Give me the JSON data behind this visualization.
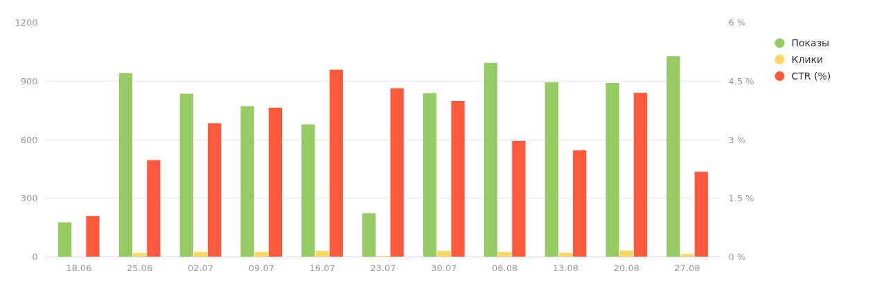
{
  "chart_data": {
    "type": "bar",
    "categories": [
      "18.06",
      "25.06",
      "02.07",
      "09.07",
      "16.07",
      "23.07",
      "30.07",
      "06.08",
      "13.08",
      "20.08",
      "27.08"
    ],
    "series": [
      {
        "name": "Показы",
        "color": "#97cb63",
        "values": [
          177,
          940,
          835,
          772,
          678,
          224,
          838,
          994,
          894,
          890,
          1027
        ]
      },
      {
        "name": "Клики",
        "color": "#ffd75e",
        "values": [
          0,
          20,
          26,
          26,
          30,
          4,
          30,
          26,
          21,
          33,
          15
        ]
      },
      {
        "name": "CTR (%)",
        "color": "#ff5a3c",
        "axis": "y2",
        "values": [
          1.05,
          2.48,
          3.42,
          3.82,
          4.79,
          4.32,
          3.99,
          2.97,
          2.73,
          4.2,
          2.18
        ]
      }
    ],
    "ylim": [
      0,
      1200
    ],
    "yticks": [
      0,
      300,
      600,
      900,
      1200
    ],
    "y2lim": [
      0,
      6
    ],
    "y2ticks": [
      {
        "value": 0,
        "label": "0 %"
      },
      {
        "value": 1.5,
        "label": "1.5 %"
      },
      {
        "value": 3,
        "label": "3 %"
      },
      {
        "value": 4.5,
        "label": "4.5 %"
      },
      {
        "value": 6,
        "label": "6 %"
      }
    ],
    "grid": "y",
    "legend": "top right"
  }
}
